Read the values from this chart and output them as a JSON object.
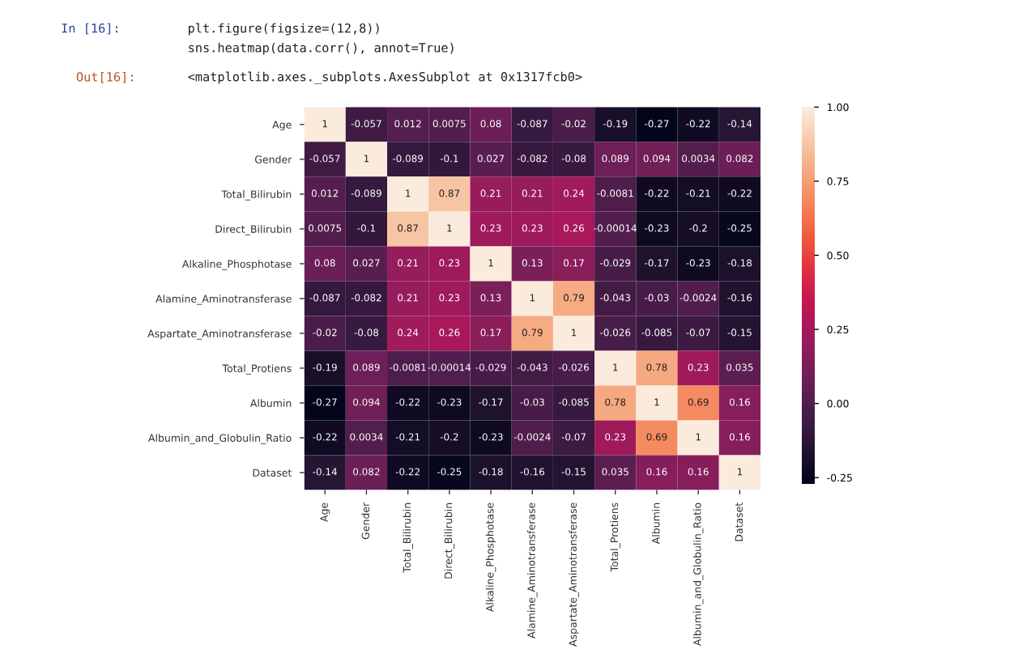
{
  "chart_data": {
    "type": "heatmap",
    "annotations": [
      "In [16]:",
      "plt.figure(figsize=(12,8))",
      "sns.heatmap(data.corr(), annot=True)",
      "Out[16]:",
      "<matplotlib.axes._subplots.AxesSubplot at 0x1317fcb0>"
    ],
    "categories": [
      "Age",
      "Gender",
      "Total_Bilirubin",
      "Direct_Bilirubin",
      "Alkaline_Phosphotase",
      "Alamine_Aminotransferase",
      "Aspartate_Aminotransferase",
      "Total_Protiens",
      "Albumin",
      "Albumin_and_Globulin_Ratio",
      "Dataset"
    ],
    "y_categories": [
      "Age",
      "Gender",
      "Total_Bilirubin",
      "Direct_Bilirubin",
      "Alkaline_Phosphotase",
      "Alamine_Aminotransferase",
      "Aspartate_Aminotransferase",
      "Total_Protiens",
      "Albumin",
      "Albumin_and_Globulin_Ratio",
      "Dataset"
    ],
    "cells": [
      [
        1,
        -0.057,
        0.012,
        0.0075,
        0.08,
        -0.087,
        -0.02,
        -0.19,
        -0.27,
        -0.22,
        -0.14
      ],
      [
        -0.057,
        1,
        -0.089,
        -0.1,
        0.027,
        -0.082,
        -0.08,
        0.089,
        0.094,
        0.0034,
        0.082
      ],
      [
        0.012,
        -0.089,
        1,
        0.87,
        0.21,
        0.21,
        0.24,
        -0.0081,
        -0.22,
        -0.21,
        -0.22
      ],
      [
        0.0075,
        -0.1,
        0.87,
        1,
        0.23,
        0.23,
        0.26,
        -0.00014,
        -0.23,
        -0.2,
        -0.25
      ],
      [
        0.08,
        0.027,
        0.21,
        0.23,
        1,
        0.13,
        0.17,
        -0.029,
        -0.17,
        -0.23,
        -0.18
      ],
      [
        -0.087,
        -0.082,
        0.21,
        0.23,
        0.13,
        1,
        0.79,
        -0.043,
        -0.03,
        -0.0024,
        -0.16
      ],
      [
        -0.02,
        -0.08,
        0.24,
        0.26,
        0.17,
        0.79,
        1,
        -0.026,
        -0.085,
        -0.07,
        -0.15
      ],
      [
        -0.19,
        0.089,
        -0.0081,
        -0.00014,
        -0.029,
        -0.043,
        -0.026,
        1,
        0.78,
        0.23,
        0.035
      ],
      [
        -0.27,
        0.094,
        -0.22,
        -0.23,
        -0.17,
        -0.03,
        -0.085,
        0.78,
        1,
        0.69,
        0.16
      ],
      [
        -0.22,
        0.0034,
        -0.21,
        -0.2,
        -0.23,
        -0.0024,
        -0.07,
        0.23,
        0.69,
        1,
        0.16
      ],
      [
        -0.14,
        0.082,
        -0.22,
        -0.25,
        -0.18,
        -0.16,
        -0.15,
        0.035,
        0.16,
        0.16,
        1
      ]
    ],
    "data_labels": true,
    "clim": [
      -0.27,
      1
    ],
    "cticks": [
      {
        "value": -0.25,
        "label": "-0.25"
      },
      {
        "value": 0,
        "label": "0.00"
      },
      {
        "value": 0.25,
        "label": "0.25"
      },
      {
        "value": 0.5,
        "label": "0.50"
      },
      {
        "value": 0.75,
        "label": "0.75"
      },
      {
        "value": 1,
        "label": "1.00"
      }
    ]
  }
}
